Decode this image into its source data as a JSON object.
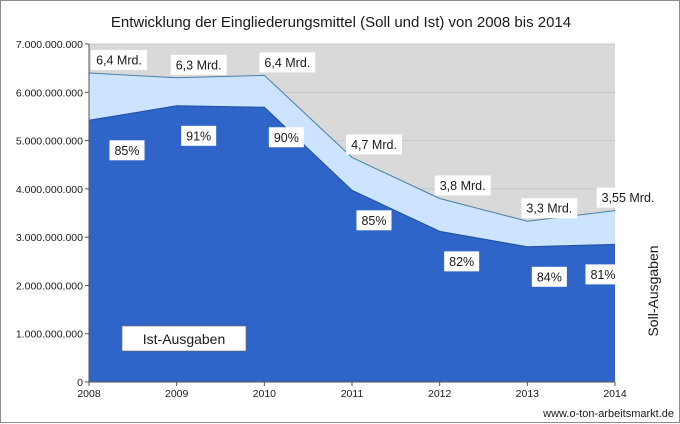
{
  "chart_data": {
    "type": "area",
    "title": "Entwicklung der Eingliederungsmittel (Soll und Ist) von 2008 bis 2014",
    "x": [
      "2008",
      "2009",
      "2010",
      "2011",
      "2012",
      "2013",
      "2014"
    ],
    "y_ticks": [
      "0",
      "1.000.000.000",
      "2.000.000.000",
      "3.000.000.000",
      "4.000.000.000",
      "5.000.000.000",
      "6.000.000.000",
      "7.000.000.000"
    ],
    "ylim": [
      0,
      7000000000
    ],
    "series": [
      {
        "name": "Soll-Ausgaben",
        "color": "#cce4ff",
        "values": [
          6400000000,
          6300000000,
          6350000000,
          4650000000,
          3800000000,
          3330000000,
          3550000000
        ],
        "labels": [
          "6,4 Mrd.",
          "6,3 Mrd.",
          "6,4 Mrd.",
          "4,7 Mrd.",
          "3,8 Mrd.",
          "3,3 Mrd.",
          "3,55 Mrd."
        ]
      },
      {
        "name": "Ist-Ausgaben",
        "color": "#2f64c8",
        "values": [
          5420000000,
          5720000000,
          5690000000,
          3970000000,
          3120000000,
          2800000000,
          2850000000
        ],
        "labels": [
          "85%",
          "91%",
          "90%",
          "85%",
          "82%",
          "84%",
          "81%"
        ]
      }
    ],
    "legend_labels": {
      "ist": "Ist-Ausgaben",
      "soll": "Soll-Ausgaben"
    },
    "grid": true,
    "plot_background": "#d9d9d9",
    "source": "www.o-ton-arbeitsmarkt.de"
  }
}
